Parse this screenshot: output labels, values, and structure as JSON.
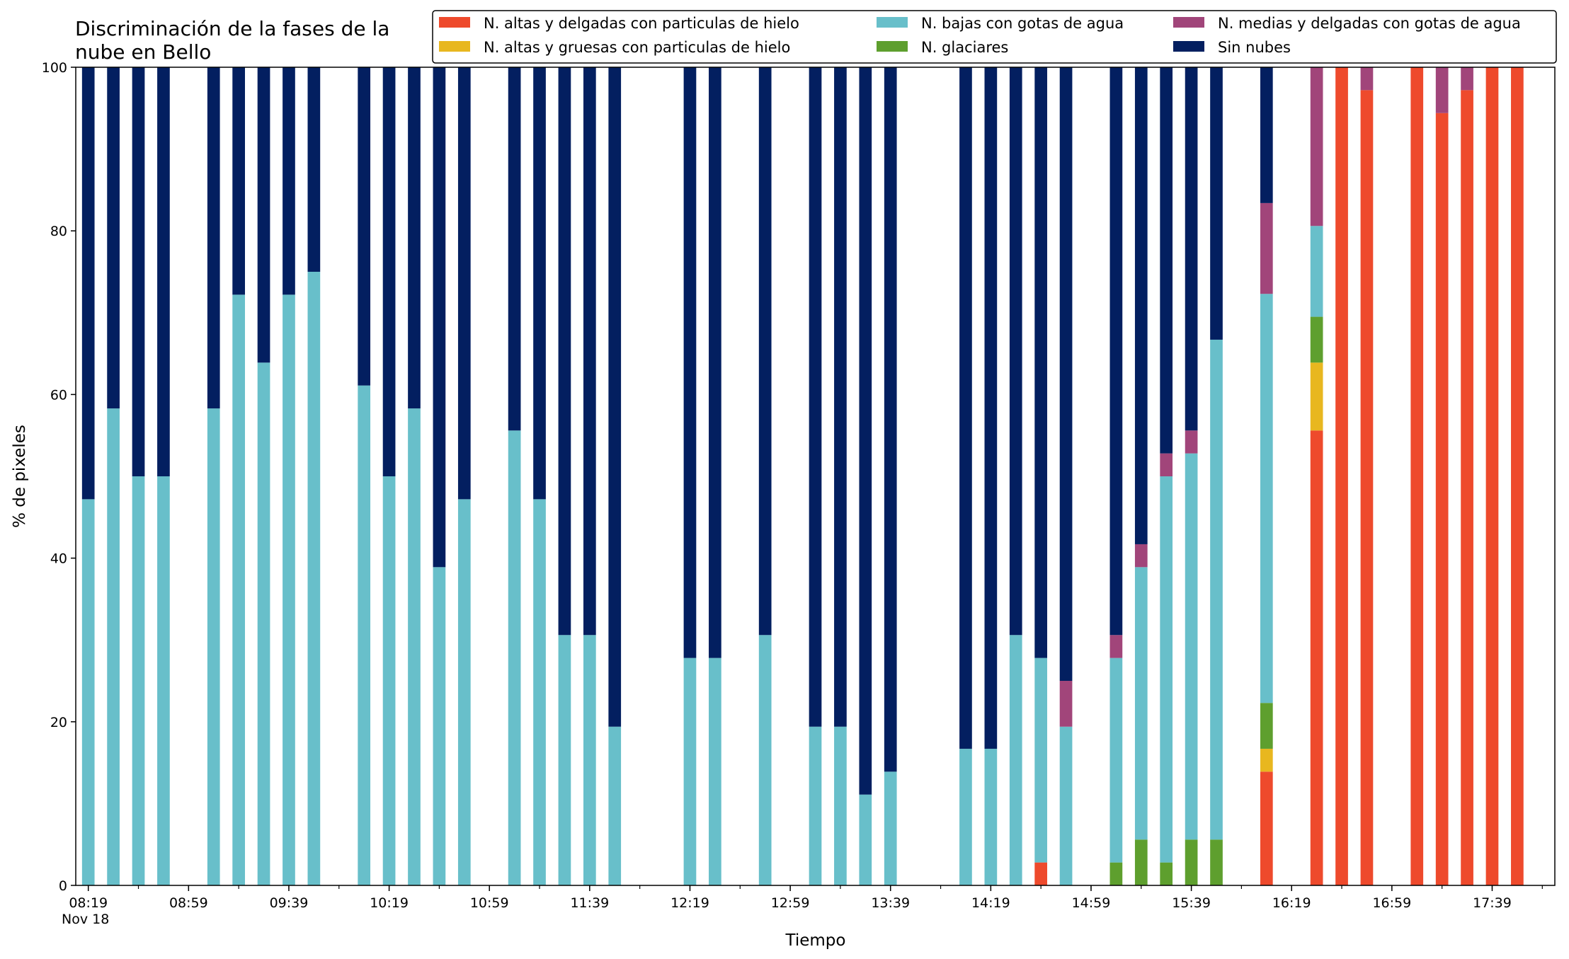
{
  "chart_data": {
    "type": "bar",
    "stacked": true,
    "title": [
      "Discriminación de la fases de la",
      "nube en Bello"
    ],
    "xlabel": "Tiempo",
    "ylabel": "% de pixeles",
    "ylim": [
      0,
      100
    ],
    "yticks": [
      0,
      20,
      40,
      60,
      80,
      100
    ],
    "x_date_label": "Nov 18",
    "x_start": "08:19",
    "x_step_minutes": 10,
    "xlim_slots": [
      -0.5,
      58.5
    ],
    "xtick_labels": [
      {
        "slot": 0,
        "label": "08:19"
      },
      {
        "slot": 4,
        "label": "08:59"
      },
      {
        "slot": 8,
        "label": "09:39"
      },
      {
        "slot": 12,
        "label": "10:19"
      },
      {
        "slot": 16,
        "label": "10:59"
      },
      {
        "slot": 20,
        "label": "11:39"
      },
      {
        "slot": 24,
        "label": "12:19"
      },
      {
        "slot": 28,
        "label": "12:59"
      },
      {
        "slot": 32,
        "label": "13:39"
      },
      {
        "slot": 36,
        "label": "14:19"
      },
      {
        "slot": 40,
        "label": "14:59"
      },
      {
        "slot": 44,
        "label": "15:39"
      },
      {
        "slot": 48,
        "label": "16:19"
      },
      {
        "slot": 52,
        "label": "16:59"
      },
      {
        "slot": 56,
        "label": "17:39"
      }
    ],
    "legend_position": "top-right",
    "legend_columns": [
      [
        "N. altas y delgadas con particulas de hielo",
        "N. altas y gruesas con particulas de hielo"
      ],
      [
        "N. bajas con gotas de agua",
        "N. glaciares"
      ],
      [
        "N. medias y delgadas con gotas de agua",
        "Sin nubes"
      ]
    ],
    "series": [
      {
        "name": "N. altas y delgadas con particulas de hielo",
        "color": "#ee4a2c"
      },
      {
        "name": "N. altas y gruesas con particulas de hielo",
        "color": "#e8b71f"
      },
      {
        "name": "N. glaciares",
        "color": "#5e9f2e"
      },
      {
        "name": "N. bajas con gotas de agua",
        "color": "#68bfca"
      },
      {
        "name": "N. medias y delgadas con gotas de agua",
        "color": "#a1457a"
      },
      {
        "name": "Sin nubes",
        "color": "#031f60"
      }
    ],
    "bars": [
      {
        "time": "08:19",
        "values": [
          0,
          0,
          0,
          47.2,
          0,
          52.8
        ]
      },
      {
        "time": "08:29",
        "values": [
          0,
          0,
          0,
          58.3,
          0,
          41.7
        ]
      },
      {
        "time": "08:39",
        "values": [
          0,
          0,
          0,
          50.0,
          0,
          50.0
        ]
      },
      {
        "time": "08:49",
        "values": [
          0,
          0,
          0,
          50.0,
          0,
          50.0
        ]
      },
      {
        "time": "09:09",
        "values": [
          0,
          0,
          0,
          58.3,
          0,
          41.7
        ]
      },
      {
        "time": "09:19",
        "values": [
          0,
          0,
          0,
          72.2,
          0,
          27.8
        ]
      },
      {
        "time": "09:29",
        "values": [
          0,
          0,
          0,
          63.9,
          0,
          36.1
        ]
      },
      {
        "time": "09:39",
        "values": [
          0,
          0,
          0,
          72.2,
          0,
          27.8
        ]
      },
      {
        "time": "09:49",
        "values": [
          0,
          0,
          0,
          75.0,
          0,
          25.0
        ]
      },
      {
        "time": "10:09",
        "values": [
          0,
          0,
          0,
          61.1,
          0,
          38.9
        ]
      },
      {
        "time": "10:19",
        "values": [
          0,
          0,
          0,
          50.0,
          0,
          50.0
        ]
      },
      {
        "time": "10:29",
        "values": [
          0,
          0,
          0,
          58.3,
          0,
          41.7
        ]
      },
      {
        "time": "10:39",
        "values": [
          0,
          0,
          0,
          38.9,
          0,
          61.1
        ]
      },
      {
        "time": "10:49",
        "values": [
          0,
          0,
          0,
          47.2,
          0,
          52.8
        ]
      },
      {
        "time": "11:09",
        "values": [
          0,
          0,
          0,
          55.6,
          0,
          44.4
        ]
      },
      {
        "time": "11:19",
        "values": [
          0,
          0,
          0,
          47.2,
          0,
          52.8
        ]
      },
      {
        "time": "11:29",
        "values": [
          0,
          0,
          0,
          30.6,
          0,
          69.4
        ]
      },
      {
        "time": "11:39",
        "values": [
          0,
          0,
          0,
          30.6,
          0,
          69.4
        ]
      },
      {
        "time": "11:49",
        "values": [
          0,
          0,
          0,
          19.4,
          0,
          80.6
        ]
      },
      {
        "time": "12:19",
        "values": [
          0,
          0,
          0,
          27.8,
          0,
          72.2
        ]
      },
      {
        "time": "12:29",
        "values": [
          0,
          0,
          0,
          27.8,
          0,
          72.2
        ]
      },
      {
        "time": "12:49",
        "values": [
          0,
          0,
          0,
          30.6,
          0,
          69.4
        ]
      },
      {
        "time": "13:09",
        "values": [
          0,
          0,
          0,
          19.4,
          0,
          80.6
        ]
      },
      {
        "time": "13:19",
        "values": [
          0,
          0,
          0,
          19.4,
          0,
          80.6
        ]
      },
      {
        "time": "13:29",
        "values": [
          0,
          0,
          0,
          11.1,
          0,
          88.9
        ]
      },
      {
        "time": "13:39",
        "values": [
          0,
          0,
          0,
          13.9,
          0,
          86.1
        ]
      },
      {
        "time": "14:09",
        "values": [
          0,
          0,
          0,
          16.7,
          0,
          83.3
        ]
      },
      {
        "time": "14:19",
        "values": [
          0,
          0,
          0,
          16.7,
          0,
          83.3
        ]
      },
      {
        "time": "14:29",
        "values": [
          0,
          0,
          0,
          30.6,
          0,
          69.4
        ]
      },
      {
        "time": "14:39",
        "values": [
          2.8,
          0,
          0,
          25.0,
          0,
          72.2
        ]
      },
      {
        "time": "14:49",
        "values": [
          0,
          0,
          0,
          19.4,
          5.6,
          75.0
        ]
      },
      {
        "time": "15:09",
        "values": [
          0,
          0,
          2.8,
          25.0,
          2.8,
          69.4
        ]
      },
      {
        "time": "15:19",
        "values": [
          0,
          0,
          5.6,
          33.3,
          2.8,
          58.3
        ]
      },
      {
        "time": "15:29",
        "values": [
          0,
          0,
          2.8,
          47.2,
          2.8,
          47.2
        ]
      },
      {
        "time": "15:39",
        "values": [
          0,
          0,
          5.6,
          47.2,
          2.8,
          44.4
        ]
      },
      {
        "time": "15:49",
        "values": [
          0,
          0,
          5.6,
          61.1,
          0,
          33.3
        ]
      },
      {
        "time": "16:09",
        "values": [
          13.9,
          2.8,
          5.6,
          50.0,
          11.1,
          16.6
        ]
      },
      {
        "time": "16:29",
        "values": [
          55.6,
          8.3,
          5.6,
          11.1,
          19.4,
          0
        ]
      },
      {
        "time": "16:39",
        "values": [
          100,
          0,
          0,
          0,
          0,
          0
        ]
      },
      {
        "time": "16:49",
        "values": [
          97.2,
          0,
          0,
          0,
          2.8,
          0
        ]
      },
      {
        "time": "17:09",
        "values": [
          100,
          0,
          0,
          0,
          0,
          0
        ]
      },
      {
        "time": "17:19",
        "values": [
          94.4,
          0,
          0,
          0,
          5.6,
          0
        ]
      },
      {
        "time": "17:29",
        "values": [
          97.2,
          0,
          0,
          0,
          2.8,
          0
        ]
      },
      {
        "time": "17:39",
        "values": [
          100,
          0,
          0,
          0,
          0,
          0
        ]
      },
      {
        "time": "17:49",
        "values": [
          100,
          0,
          0,
          0,
          0,
          0
        ]
      }
    ]
  }
}
